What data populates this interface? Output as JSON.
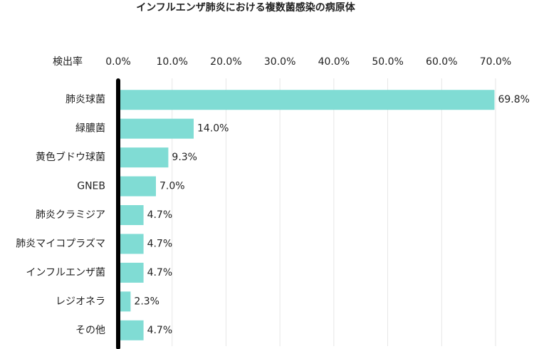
{
  "chart_data": {
    "type": "hbar",
    "title": "インフルエンザ肺炎における複数菌感染の病原体",
    "x_label": "検出率",
    "categories": [
      "肺炎球菌",
      "緑膿菌",
      "黄色ブドウ球菌",
      "GNEB",
      "肺炎クラミジア",
      "肺炎マイコプラズマ",
      "インフルエンザ菌",
      "レジオネラ",
      "その他"
    ],
    "values": [
      69.8,
      14.0,
      9.3,
      7.0,
      4.7,
      4.7,
      4.7,
      2.3,
      4.7
    ],
    "value_labels": [
      "69.8%",
      "14.0%",
      "9.3%",
      "7.0%",
      "4.7%",
      "4.7%",
      "4.7%",
      "2.3%",
      "4.7%"
    ],
    "color": "#80dcd4",
    "xlim": [
      0,
      70
    ],
    "xticks": [
      {
        "value": 0,
        "label": "0.0%"
      },
      {
        "value": 10,
        "label": "10.0%"
      },
      {
        "value": 20,
        "label": "20.0%"
      },
      {
        "value": 30,
        "label": "30.0%"
      },
      {
        "value": 40,
        "label": "40.0%"
      },
      {
        "value": 50,
        "label": "50.0%"
      },
      {
        "value": 60,
        "label": "60.0%"
      },
      {
        "value": 70,
        "label": "70.0%"
      }
    ],
    "grid": true
  }
}
